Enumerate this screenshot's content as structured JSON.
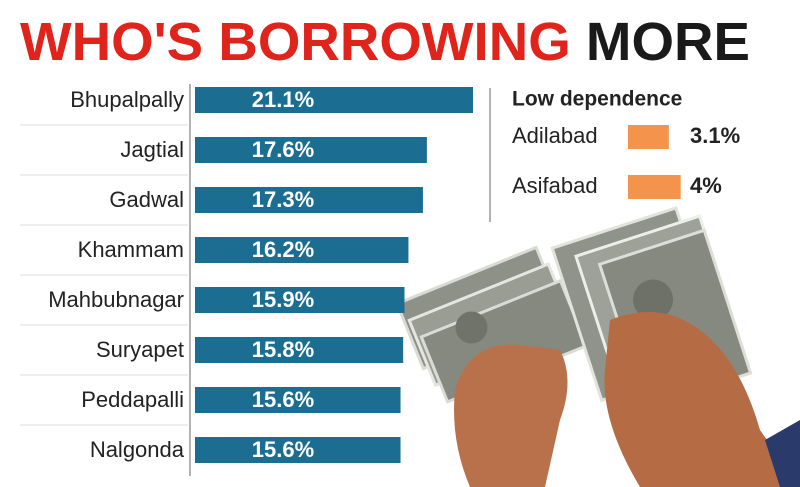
{
  "chart_data": [
    {
      "type": "bar",
      "orientation": "horizontal",
      "title": [
        "WHO'S BORROWING",
        "MORE"
      ],
      "title_colors": [
        "#e0231b",
        "#1a1a1a"
      ],
      "categories": [
        "Bhupalpally",
        "Jagtial",
        "Gadwal",
        "Khammam",
        "Mahbubnagar",
        "Suryapet",
        "Peddapalli",
        "Nalgonda"
      ],
      "values": [
        21.1,
        17.6,
        17.3,
        16.2,
        15.9,
        15.8,
        15.6,
        15.6
      ],
      "value_labels": [
        "21.1%",
        "17.6%",
        "17.3%",
        "16.2%",
        "15.9%",
        "15.8%",
        "15.6%",
        "15.6%"
      ],
      "color": "#1b6d92"
    },
    {
      "type": "bar",
      "orientation": "horizontal",
      "title": "Low dependence",
      "categories": [
        "Adilabad",
        "Asifabad"
      ],
      "values": [
        3.1,
        4
      ],
      "value_labels": [
        "3.1%",
        "4%"
      ],
      "color": "#f4944c"
    }
  ]
}
